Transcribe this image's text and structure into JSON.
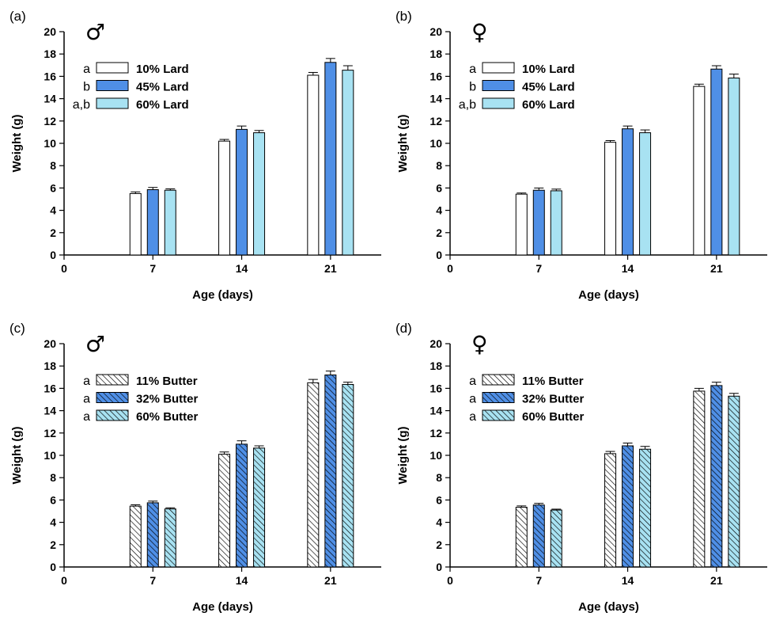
{
  "chart_data": [
    {
      "type": "bar",
      "panel_label": "(a)",
      "symbol": "♂",
      "xlabel": "Age (days)",
      "ylabel": "Weight (g)",
      "ylim": [
        0,
        20
      ],
      "yticks": [
        "0",
        "2",
        "4",
        "6",
        "8",
        "10",
        "12",
        "14",
        "16",
        "18",
        "20"
      ],
      "xticks": [
        "0",
        "7",
        "14",
        "21"
      ],
      "categories": [
        "7",
        "14",
        "21"
      ],
      "series": [
        {
          "name": "10% Lard",
          "sig": "a",
          "color": "#ffffff",
          "hatch": false,
          "values": [
            5.5,
            10.2,
            16.1
          ],
          "errors": [
            0.15,
            0.15,
            0.25
          ]
        },
        {
          "name": "45% Lard",
          "sig": "b",
          "color": "#4f8fe6",
          "hatch": false,
          "values": [
            5.85,
            11.25,
            17.25
          ],
          "errors": [
            0.2,
            0.3,
            0.35
          ]
        },
        {
          "name": "60% Lard",
          "sig": "a,b",
          "color": "#a8e2f2",
          "hatch": false,
          "values": [
            5.8,
            10.95,
            16.55
          ],
          "errors": [
            0.12,
            0.2,
            0.4
          ]
        }
      ]
    },
    {
      "type": "bar",
      "panel_label": "(b)",
      "symbol": "♀",
      "xlabel": "Age (days)",
      "ylabel": "Weight (g)",
      "ylim": [
        0,
        20
      ],
      "yticks": [
        "0",
        "2",
        "4",
        "6",
        "8",
        "10",
        "12",
        "14",
        "16",
        "18",
        "20"
      ],
      "xticks": [
        "0",
        "7",
        "14",
        "21"
      ],
      "categories": [
        "7",
        "14",
        "21"
      ],
      "series": [
        {
          "name": "10% Lard",
          "sig": "a",
          "color": "#ffffff",
          "hatch": false,
          "values": [
            5.45,
            10.1,
            15.1
          ],
          "errors": [
            0.1,
            0.15,
            0.2
          ]
        },
        {
          "name": "45% Lard",
          "sig": "b",
          "color": "#4f8fe6",
          "hatch": false,
          "values": [
            5.8,
            11.3,
            16.65
          ],
          "errors": [
            0.2,
            0.25,
            0.3
          ]
        },
        {
          "name": "60% Lard",
          "sig": "a,b",
          "color": "#a8e2f2",
          "hatch": false,
          "values": [
            5.75,
            10.95,
            15.85
          ],
          "errors": [
            0.15,
            0.25,
            0.35
          ]
        }
      ]
    },
    {
      "type": "bar",
      "panel_label": "(c)",
      "symbol": "♂",
      "xlabel": "Age (days)",
      "ylabel": "Weight (g)",
      "ylim": [
        0,
        20
      ],
      "yticks": [
        "0",
        "2",
        "4",
        "6",
        "8",
        "10",
        "12",
        "14",
        "16",
        "18",
        "20"
      ],
      "xticks": [
        "0",
        "7",
        "14",
        "21"
      ],
      "categories": [
        "7",
        "14",
        "21"
      ],
      "series": [
        {
          "name": "11% Butter",
          "sig": "a",
          "color": "#ffffff",
          "hatch": true,
          "values": [
            5.45,
            10.1,
            16.5
          ],
          "errors": [
            0.12,
            0.2,
            0.3
          ]
        },
        {
          "name": "32% Butter",
          "sig": "a",
          "color": "#4f8fe6",
          "hatch": true,
          "values": [
            5.75,
            11.0,
            17.2
          ],
          "errors": [
            0.15,
            0.3,
            0.35
          ]
        },
        {
          "name": "60% Butter",
          "sig": "a",
          "color": "#a8e2f2",
          "hatch": true,
          "values": [
            5.2,
            10.65,
            16.35
          ],
          "errors": [
            0.1,
            0.2,
            0.2
          ]
        }
      ]
    },
    {
      "type": "bar",
      "panel_label": "(d)",
      "symbol": "♀",
      "xlabel": "Age (days)",
      "ylabel": "Weight (g)",
      "ylim": [
        0,
        20
      ],
      "yticks": [
        "0",
        "2",
        "4",
        "6",
        "8",
        "10",
        "12",
        "14",
        "16",
        "18",
        "20"
      ],
      "xticks": [
        "0",
        "7",
        "14",
        "21"
      ],
      "categories": [
        "7",
        "14",
        "21"
      ],
      "series": [
        {
          "name": "11% Butter",
          "sig": "a",
          "color": "#ffffff",
          "hatch": true,
          "values": [
            5.35,
            10.15,
            15.75
          ],
          "errors": [
            0.12,
            0.2,
            0.25
          ]
        },
        {
          "name": "32% Butter",
          "sig": "a",
          "color": "#4f8fe6",
          "hatch": true,
          "values": [
            5.55,
            10.85,
            16.25
          ],
          "errors": [
            0.15,
            0.25,
            0.3
          ]
        },
        {
          "name": "60% Butter",
          "sig": "a",
          "color": "#a8e2f2",
          "hatch": true,
          "values": [
            5.1,
            10.55,
            15.3
          ],
          "errors": [
            0.08,
            0.25,
            0.25
          ]
        }
      ]
    }
  ]
}
